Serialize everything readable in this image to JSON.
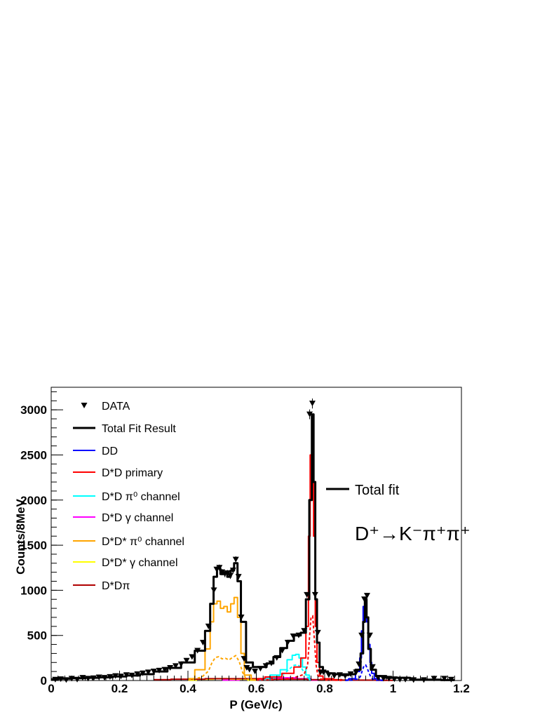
{
  "chart_data": {
    "type": "histogram",
    "xlabel": "P (GeV/c)",
    "ylabel": "Counts/8MeV",
    "xlim": [
      0,
      1.2
    ],
    "ylim": [
      0,
      3250
    ],
    "xticks": [
      "0",
      "0.2",
      "0.4",
      "0.6",
      "0.8",
      "1",
      "1.2"
    ],
    "yticks": [
      "0",
      "500",
      "1000",
      "1500",
      "2000",
      "2500",
      "3000"
    ],
    "grid": false,
    "legend_position": "top-left",
    "legend": [
      {
        "label": "DATA",
        "color": "#000000",
        "style": "marker"
      },
      {
        "label": "Total Fit Result",
        "color": "#000000",
        "style": "line"
      },
      {
        "label": "DD",
        "color": "#0000ff",
        "style": "line"
      },
      {
        "label": "D*D primary",
        "color": "#ff0000",
        "style": "line"
      },
      {
        "label": "D*D π⁰ channel",
        "color": "#00ffff",
        "style": "line"
      },
      {
        "label": "D*D γ channel",
        "color": "#ff00ff",
        "style": "line"
      },
      {
        "label": "D*D* π⁰ channel",
        "color": "#ffa500",
        "style": "line"
      },
      {
        "label": "D*D* γ channel",
        "color": "#ffff00",
        "style": "line"
      },
      {
        "label": "D*Dπ",
        "color": "#b00000",
        "style": "line"
      }
    ],
    "annotations": {
      "total_fit_label": "Total fit",
      "decay_label": "D⁺→K⁻π⁺π⁺"
    },
    "series": [
      {
        "name": "DATA",
        "color": "#000000",
        "x": [
          0.012,
          0.028,
          0.044,
          0.06,
          0.076,
          0.092,
          0.108,
          0.124,
          0.14,
          0.156,
          0.172,
          0.188,
          0.204,
          0.22,
          0.236,
          0.252,
          0.268,
          0.284,
          0.3,
          0.316,
          0.332,
          0.348,
          0.364,
          0.38,
          0.396,
          0.412,
          0.428,
          0.444,
          0.46,
          0.476,
          0.484,
          0.492,
          0.5,
          0.508,
          0.516,
          0.524,
          0.532,
          0.54,
          0.548,
          0.556,
          0.564,
          0.572,
          0.58,
          0.596,
          0.612,
          0.628,
          0.644,
          0.66,
          0.676,
          0.692,
          0.708,
          0.724,
          0.74,
          0.748,
          0.756,
          0.764,
          0.772,
          0.78,
          0.788,
          0.796,
          0.812,
          0.828,
          0.844,
          0.86,
          0.876,
          0.892,
          0.9,
          0.908,
          0.916,
          0.924,
          0.932,
          0.94,
          0.956,
          0.972,
          0.988,
          1.004,
          1.02,
          1.036,
          1.06,
          1.09,
          1.12,
          1.15,
          1.17
        ],
        "y": [
          10,
          15,
          5,
          20,
          10,
          30,
          20,
          25,
          35,
          30,
          40,
          50,
          45,
          60,
          55,
          70,
          80,
          90,
          100,
          110,
          120,
          140,
          160,
          180,
          220,
          260,
          330,
          420,
          600,
          1000,
          1230,
          1250,
          1200,
          1180,
          1190,
          1160,
          1220,
          1340,
          1150,
          700,
          240,
          140,
          120,
          100,
          130,
          160,
          190,
          250,
          330,
          420,
          490,
          500,
          550,
          950,
          2950,
          3070,
          950,
          530,
          90,
          90,
          60,
          50,
          60,
          50,
          70,
          90,
          180,
          500,
          900,
          940,
          500,
          150,
          30,
          20,
          20,
          15,
          10,
          10,
          5,
          5,
          20,
          20,
          10
        ]
      },
      {
        "name": "Total Fit Result",
        "color": "#000000",
        "x": [
          0,
          0.04,
          0.08,
          0.12,
          0.16,
          0.2,
          0.24,
          0.28,
          0.32,
          0.36,
          0.4,
          0.44,
          0.46,
          0.47,
          0.48,
          0.49,
          0.5,
          0.51,
          0.52,
          0.53,
          0.54,
          0.55,
          0.56,
          0.58,
          0.6,
          0.62,
          0.64,
          0.66,
          0.68,
          0.7,
          0.72,
          0.74,
          0.75,
          0.76,
          0.765,
          0.77,
          0.775,
          0.78,
          0.79,
          0.8,
          0.82,
          0.84,
          0.86,
          0.88,
          0.9,
          0.91,
          0.915,
          0.92,
          0.925,
          0.93,
          0.94,
          0.96,
          1.0,
          1.1,
          1.18
        ],
        "y": [
          15,
          20,
          25,
          30,
          35,
          45,
          55,
          70,
          100,
          140,
          200,
          330,
          550,
          850,
          1150,
          1240,
          1180,
          1190,
          1150,
          1220,
          1300,
          1100,
          650,
          200,
          150,
          150,
          190,
          260,
          360,
          440,
          500,
          530,
          900,
          2000,
          2950,
          2200,
          900,
          420,
          150,
          100,
          80,
          70,
          60,
          70,
          120,
          300,
          650,
          900,
          700,
          350,
          120,
          50,
          30,
          10,
          5
        ]
      },
      {
        "name": "DD",
        "color": "#0000ff",
        "x": [
          0.86,
          0.88,
          0.9,
          0.905,
          0.91,
          0.915,
          0.92,
          0.925,
          0.93,
          0.935,
          0.94,
          0.95,
          0.97
        ],
        "y": [
          5,
          20,
          100,
          250,
          550,
          820,
          860,
          650,
          400,
          200,
          80,
          20,
          5
        ]
      },
      {
        "name": "D*D primary",
        "color": "#ff0000",
        "x": [
          0.6,
          0.65,
          0.7,
          0.72,
          0.74,
          0.75,
          0.755,
          0.76,
          0.765,
          0.77,
          0.775,
          0.78,
          0.79,
          0.8,
          0.85
        ],
        "y": [
          20,
          40,
          80,
          150,
          250,
          600,
          1600,
          2500,
          2550,
          1600,
          600,
          200,
          50,
          20,
          5
        ]
      },
      {
        "name": "D*D π⁰ channel",
        "color": "#00ffff",
        "x": [
          0.62,
          0.66,
          0.68,
          0.7,
          0.71,
          0.72,
          0.73,
          0.74,
          0.75,
          0.76
        ],
        "y": [
          20,
          60,
          120,
          230,
          280,
          290,
          250,
          150,
          60,
          10
        ]
      },
      {
        "name": "D*D* π⁰ channel",
        "color": "#ffa500",
        "x": [
          0.4,
          0.44,
          0.46,
          0.47,
          0.48,
          0.49,
          0.5,
          0.51,
          0.52,
          0.53,
          0.54,
          0.55,
          0.56,
          0.57,
          0.6
        ],
        "y": [
          20,
          120,
          350,
          650,
          850,
          880,
          800,
          820,
          760,
          850,
          920,
          700,
          300,
          60,
          10
        ]
      },
      {
        "name": "D*D γ channel",
        "color": "#ff00ff",
        "x": [
          0.5,
          0.6,
          0.65,
          0.7,
          0.74,
          0.78
        ],
        "y": [
          5,
          15,
          25,
          30,
          20,
          5
        ]
      },
      {
        "name": "D*D* γ channel",
        "color": "#ffff00",
        "x": [
          0.4,
          0.45,
          0.5,
          0.55,
          0.6
        ],
        "y": [
          5,
          15,
          20,
          15,
          5
        ]
      },
      {
        "name": "D*Dπ",
        "color": "#b00000",
        "x": [
          0.3,
          0.4,
          0.5,
          0.6,
          0.7,
          0.8,
          0.9,
          1.0
        ],
        "y": [
          10,
          15,
          20,
          20,
          15,
          10,
          5,
          2
        ]
      }
    ]
  }
}
